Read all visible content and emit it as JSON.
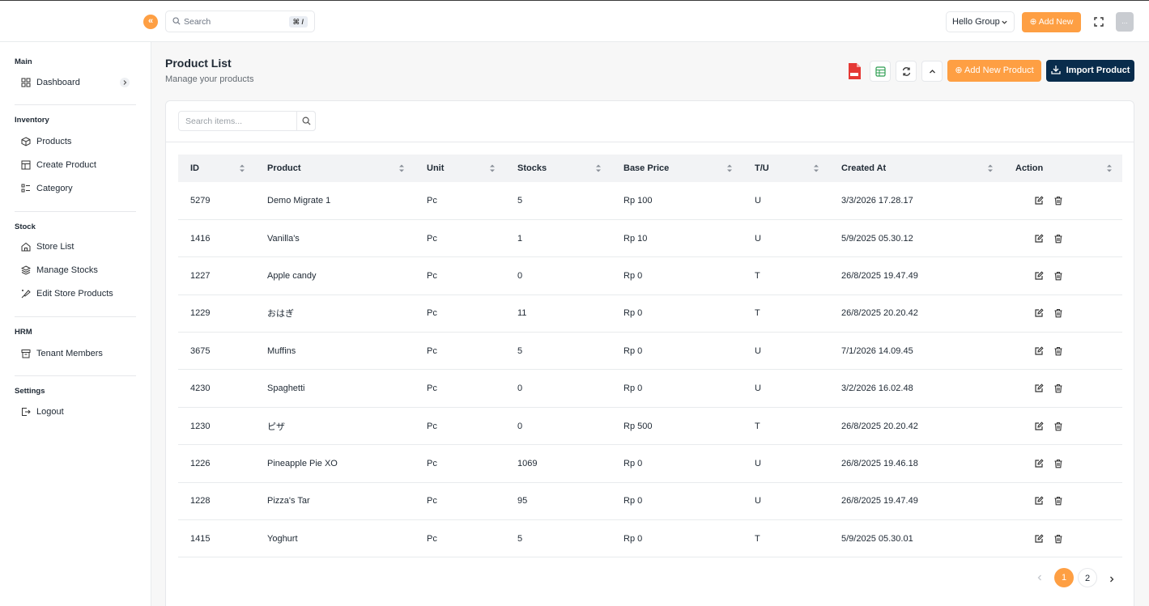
{
  "header": {
    "search_placeholder": "Search",
    "search_shortcut": "⌘ /",
    "store_select": "Hello Group",
    "add_new": "Add New",
    "avatar_text": "..."
  },
  "sidebar": {
    "sections": [
      {
        "title": "Main",
        "items": [
          {
            "label": "Dashboard",
            "icon": "grid-icon"
          }
        ]
      },
      {
        "title": "Inventory",
        "items": [
          {
            "label": "Products",
            "icon": "box-icon"
          },
          {
            "label": "Create Product",
            "icon": "table-icon"
          },
          {
            "label": "Category",
            "icon": "list-icon"
          }
        ]
      },
      {
        "title": "Stock",
        "items": [
          {
            "label": "Store List",
            "icon": "home-icon"
          },
          {
            "label": "Manage Stocks",
            "icon": "stack-icon"
          },
          {
            "label": "Edit Store Products",
            "icon": "edit-line-icon"
          }
        ]
      },
      {
        "title": "HRM",
        "items": [
          {
            "label": "Tenant Members",
            "icon": "archive-icon"
          }
        ]
      },
      {
        "title": "Settings",
        "items": [
          {
            "label": "Logout",
            "icon": "logout-icon"
          }
        ]
      }
    ]
  },
  "page": {
    "title": "Product List",
    "subtitle": "Manage your products",
    "add_product_button": "Add New Product",
    "import_button": "Import Product",
    "search_placeholder": "Search items..."
  },
  "table": {
    "columns": [
      "ID",
      "Product",
      "Unit",
      "Stocks",
      "Base Price",
      "T/U",
      "Created At",
      "Action"
    ],
    "rows": [
      [
        "5279",
        "Demo Migrate 1",
        "Pc",
        "5",
        "Rp 100",
        "U",
        "3/3/2026 17.28.17"
      ],
      [
        "1416",
        "Vanilla's",
        "Pc",
        "1",
        "Rp 10",
        "U",
        "5/9/2025 05.30.12"
      ],
      [
        "1227",
        "Apple candy",
        "Pc",
        "0",
        "Rp 0",
        "T",
        "26/8/2025 19.47.49"
      ],
      [
        "1229",
        "おはぎ",
        "Pc",
        "11",
        "Rp 0",
        "T",
        "26/8/2025 20.20.42"
      ],
      [
        "3675",
        "Muffins",
        "Pc",
        "5",
        "Rp 0",
        "U",
        "7/1/2026 14.09.45"
      ],
      [
        "4230",
        "Spaghetti",
        "Pc",
        "0",
        "Rp 0",
        "U",
        "3/2/2026 16.02.48"
      ],
      [
        "1230",
        "ピザ",
        "Pc",
        "0",
        "Rp 500",
        "T",
        "26/8/2025 20.20.42"
      ],
      [
        "1226",
        "Pineapple Pie XO",
        "Pc",
        "1069",
        "Rp 0",
        "U",
        "26/8/2025 19.46.18"
      ],
      [
        "1228",
        "Pizza's Tar",
        "Pc",
        "95",
        "Rp 0",
        "U",
        "26/8/2025 19.47.49"
      ],
      [
        "1415",
        "Yoghurt",
        "Pc",
        "5",
        "Rp 0",
        "T",
        "5/9/2025 05.30.01"
      ]
    ]
  },
  "pagination": {
    "pages": [
      "1",
      "2"
    ],
    "current": "1"
  },
  "colors": {
    "accent": "#fe9f43",
    "dark": "#092c4c"
  }
}
